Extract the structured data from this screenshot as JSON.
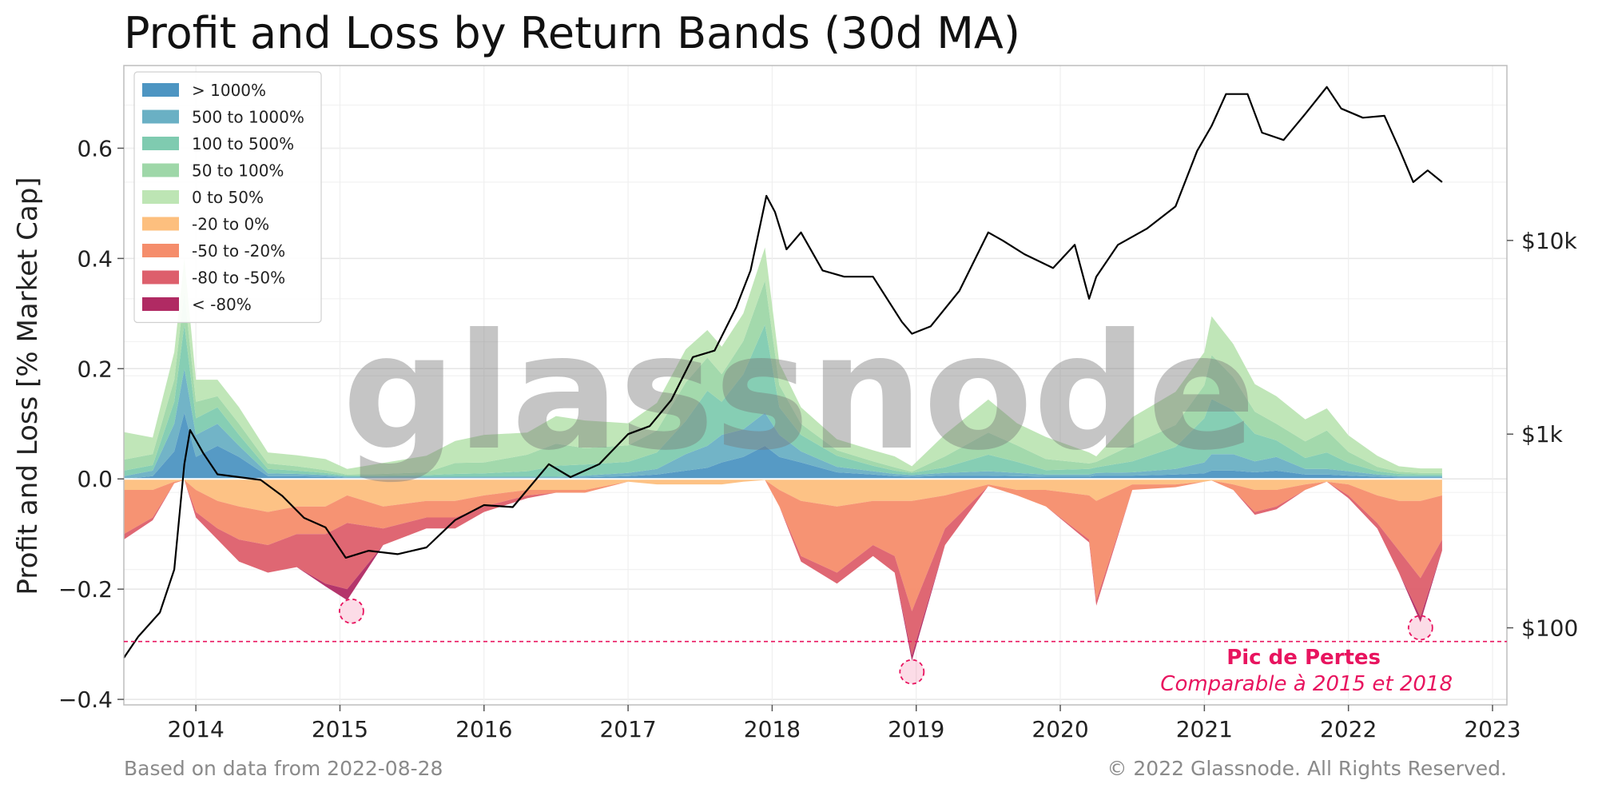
{
  "chart_data": {
    "type": "area",
    "title": "Profit and Loss by Return Bands (30d MA)",
    "ylabel": "Profit and Loss [% Market Cap]",
    "xlabel": "",
    "xlim": [
      2013.5,
      2023.1
    ],
    "ylim": [
      -0.41,
      0.75
    ],
    "yticks": [
      -0.4,
      -0.2,
      0.0,
      0.2,
      0.4,
      0.6
    ],
    "ytick_labels": [
      "−0.4",
      "−0.2",
      "0.0",
      "0.2",
      "0.4",
      "0.6"
    ],
    "xticks": [
      2014,
      2015,
      2016,
      2017,
      2018,
      2019,
      2020,
      2021,
      2022,
      2023
    ],
    "xtick_labels": [
      "2014",
      "2015",
      "2016",
      "2017",
      "2018",
      "2019",
      "2020",
      "2021",
      "2022",
      "2023"
    ],
    "y2_scale": "log",
    "y2lim": [
      40,
      80000
    ],
    "y2ticks": [
      100,
      1000,
      10000
    ],
    "y2tick_labels": [
      "$100",
      "$1k",
      "$10k"
    ],
    "grid": true,
    "legend_position": "top-left",
    "x": [
      2013.5,
      2013.7,
      2013.85,
      2013.92,
      2014.0,
      2014.15,
      2014.3,
      2014.5,
      2014.7,
      2014.9,
      2015.05,
      2015.3,
      2015.6,
      2015.8,
      2016.0,
      2016.3,
      2016.5,
      2016.7,
      2017.0,
      2017.2,
      2017.4,
      2017.55,
      2017.65,
      2017.8,
      2017.95,
      2018.05,
      2018.2,
      2018.45,
      2018.7,
      2018.85,
      2018.97,
      2019.2,
      2019.5,
      2019.7,
      2019.9,
      2020.2,
      2020.25,
      2020.5,
      2020.8,
      2021.0,
      2021.05,
      2021.2,
      2021.35,
      2021.5,
      2021.7,
      2021.85,
      2022.0,
      2022.2,
      2022.35,
      2022.5,
      2022.65
    ],
    "series": [
      {
        "name": "> 1000%",
        "color": "#4d95c2",
        "values": [
          0.0,
          0.005,
          0.05,
          0.12,
          0.04,
          0.06,
          0.04,
          0.005,
          0.005,
          0.004,
          0.002,
          0.002,
          0.002,
          0.002,
          0.002,
          0.002,
          0.002,
          0.003,
          0.005,
          0.008,
          0.015,
          0.02,
          0.03,
          0.04,
          0.06,
          0.04,
          0.03,
          0.012,
          0.008,
          0.005,
          0.004,
          0.006,
          0.006,
          0.005,
          0.004,
          0.004,
          0.006,
          0.006,
          0.008,
          0.01,
          0.015,
          0.015,
          0.012,
          0.015,
          0.008,
          0.008,
          0.006,
          0.004,
          0.003,
          0.003,
          0.003
        ]
      },
      {
        "name": "500 to 1000%",
        "color": "#6ab0c4",
        "values": [
          0.005,
          0.01,
          0.05,
          0.08,
          0.04,
          0.04,
          0.02,
          0.005,
          0.004,
          0.003,
          0.002,
          0.002,
          0.002,
          0.002,
          0.002,
          0.002,
          0.002,
          0.003,
          0.006,
          0.01,
          0.03,
          0.04,
          0.05,
          0.05,
          0.06,
          0.04,
          0.02,
          0.01,
          0.006,
          0.004,
          0.003,
          0.005,
          0.008,
          0.006,
          0.004,
          0.004,
          0.005,
          0.006,
          0.01,
          0.02,
          0.03,
          0.03,
          0.02,
          0.025,
          0.01,
          0.01,
          0.008,
          0.004,
          0.002,
          0.002,
          0.002
        ]
      },
      {
        "name": "100 to 500%",
        "color": "#7fcbb0",
        "values": [
          0.01,
          0.01,
          0.04,
          0.08,
          0.03,
          0.03,
          0.02,
          0.008,
          0.006,
          0.004,
          0.002,
          0.002,
          0.003,
          0.005,
          0.006,
          0.01,
          0.02,
          0.02,
          0.02,
          0.03,
          0.06,
          0.1,
          0.06,
          0.1,
          0.16,
          0.05,
          0.03,
          0.02,
          0.01,
          0.006,
          0.004,
          0.01,
          0.03,
          0.02,
          0.008,
          0.01,
          0.01,
          0.02,
          0.04,
          0.08,
          0.1,
          0.08,
          0.05,
          0.03,
          0.02,
          0.03,
          0.015,
          0.006,
          0.004,
          0.003,
          0.003
        ]
      },
      {
        "name": "50 to 100%",
        "color": "#9ed7a8",
        "values": [
          0.02,
          0.02,
          0.04,
          0.06,
          0.03,
          0.02,
          0.02,
          0.01,
          0.008,
          0.005,
          0.002,
          0.003,
          0.005,
          0.02,
          0.02,
          0.03,
          0.04,
          0.03,
          0.03,
          0.04,
          0.07,
          0.06,
          0.05,
          0.06,
          0.08,
          0.04,
          0.02,
          0.01,
          0.008,
          0.006,
          0.002,
          0.02,
          0.04,
          0.03,
          0.02,
          0.01,
          0.01,
          0.03,
          0.04,
          0.06,
          0.08,
          0.06,
          0.04,
          0.03,
          0.03,
          0.04,
          0.02,
          0.008,
          0.004,
          0.003,
          0.003
        ]
      },
      {
        "name": "0 to 50%",
        "color": "#bde5b4",
        "values": [
          0.05,
          0.03,
          0.05,
          0.06,
          0.04,
          0.03,
          0.03,
          0.02,
          0.02,
          0.02,
          0.01,
          0.02,
          0.03,
          0.04,
          0.05,
          0.04,
          0.05,
          0.05,
          0.04,
          0.05,
          0.06,
          0.05,
          0.05,
          0.05,
          0.06,
          0.04,
          0.03,
          0.02,
          0.02,
          0.02,
          0.01,
          0.04,
          0.06,
          0.04,
          0.04,
          0.02,
          0.01,
          0.05,
          0.06,
          0.06,
          0.07,
          0.06,
          0.05,
          0.05,
          0.04,
          0.04,
          0.03,
          0.02,
          0.01,
          0.008,
          0.008
        ]
      },
      {
        "name": "-20 to 0%",
        "color": "#fdbf7e",
        "values": [
          -0.02,
          -0.02,
          -0.005,
          -0.002,
          -0.02,
          -0.04,
          -0.05,
          -0.06,
          -0.05,
          -0.05,
          -0.03,
          -0.05,
          -0.04,
          -0.04,
          -0.03,
          -0.02,
          -0.02,
          -0.02,
          -0.005,
          -0.01,
          -0.01,
          -0.01,
          -0.01,
          -0.005,
          -0.002,
          -0.02,
          -0.04,
          -0.05,
          -0.04,
          -0.04,
          -0.04,
          -0.03,
          -0.01,
          -0.02,
          -0.02,
          -0.03,
          -0.04,
          -0.01,
          -0.01,
          -0.005,
          -0.003,
          -0.01,
          -0.02,
          -0.02,
          -0.01,
          -0.005,
          -0.01,
          -0.03,
          -0.04,
          -0.04,
          -0.03
        ]
      },
      {
        "name": "-50 to -20%",
        "color": "#f58d6b",
        "values": [
          -0.08,
          -0.05,
          -0.003,
          0.0,
          -0.04,
          -0.05,
          -0.06,
          -0.06,
          -0.05,
          -0.05,
          -0.05,
          -0.04,
          -0.03,
          -0.03,
          -0.02,
          -0.01,
          -0.005,
          -0.005,
          0.0,
          0.0,
          0.0,
          0.0,
          0.0,
          0.0,
          0.0,
          -0.03,
          -0.1,
          -0.12,
          -0.08,
          -0.1,
          -0.2,
          -0.06,
          -0.003,
          -0.01,
          -0.03,
          -0.08,
          -0.18,
          -0.01,
          -0.005,
          0.0,
          0.0,
          -0.01,
          -0.04,
          -0.03,
          -0.01,
          0.0,
          -0.02,
          -0.05,
          -0.09,
          -0.14,
          -0.08
        ]
      },
      {
        "name": "-80 to -50%",
        "color": "#dd5f6c",
        "values": [
          -0.01,
          -0.005,
          0.0,
          0.0,
          -0.01,
          -0.02,
          -0.04,
          -0.05,
          -0.06,
          -0.09,
          -0.12,
          -0.03,
          -0.02,
          -0.02,
          -0.01,
          -0.005,
          0.0,
          0.0,
          0.0,
          0.0,
          0.0,
          0.0,
          0.0,
          0.0,
          0.0,
          0.0,
          -0.01,
          -0.02,
          -0.02,
          -0.03,
          -0.08,
          -0.03,
          0.0,
          0.0,
          0.0,
          -0.005,
          -0.01,
          0.0,
          0.0,
          0.0,
          0.0,
          0.0,
          -0.005,
          -0.005,
          0.0,
          0.0,
          -0.005,
          -0.01,
          -0.04,
          -0.07,
          -0.02
        ]
      },
      {
        "name": "< -80%",
        "color": "#b02a63",
        "values": [
          0.0,
          0.0,
          0.0,
          0.0,
          0.0,
          0.0,
          0.0,
          0.0,
          0.0,
          -0.005,
          -0.02,
          0.0,
          0.0,
          0.0,
          0.0,
          0.0,
          0.0,
          0.0,
          0.0,
          0.0,
          0.0,
          0.0,
          0.0,
          0.0,
          0.0,
          0.0,
          0.0,
          0.0,
          0.0,
          0.0,
          -0.01,
          0.0,
          0.0,
          0.0,
          0.0,
          0.0,
          0.0,
          0.0,
          0.0,
          0.0,
          0.0,
          0.0,
          0.0,
          0.0,
          0.0,
          0.0,
          0.0,
          0.0,
          0.0,
          -0.01,
          0.0
        ]
      }
    ],
    "price": {
      "color": "#000000",
      "axis": "right",
      "x": [
        2013.5,
        2013.6,
        2013.75,
        2013.85,
        2013.92,
        2013.96,
        2014.05,
        2014.15,
        2014.3,
        2014.45,
        2014.6,
        2014.75,
        2014.9,
        2015.04,
        2015.2,
        2015.4,
        2015.6,
        2015.8,
        2016.0,
        2016.2,
        2016.45,
        2016.6,
        2016.8,
        2017.0,
        2017.15,
        2017.3,
        2017.45,
        2017.6,
        2017.75,
        2017.85,
        2017.96,
        2018.02,
        2018.1,
        2018.2,
        2018.35,
        2018.5,
        2018.7,
        2018.9,
        2018.97,
        2019.1,
        2019.3,
        2019.5,
        2019.6,
        2019.75,
        2019.95,
        2020.1,
        2020.2,
        2020.25,
        2020.4,
        2020.6,
        2020.8,
        2020.95,
        2021.05,
        2021.15,
        2021.3,
        2021.4,
        2021.55,
        2021.7,
        2021.85,
        2021.95,
        2022.1,
        2022.25,
        2022.35,
        2022.45,
        2022.55,
        2022.65
      ],
      "values": [
        70,
        90,
        120,
        200,
        700,
        1050,
        800,
        620,
        600,
        580,
        480,
        370,
        330,
        230,
        250,
        240,
        260,
        360,
        430,
        420,
        700,
        600,
        700,
        1000,
        1100,
        1500,
        2500,
        2700,
        4500,
        7000,
        17000,
        14000,
        9000,
        11000,
        7000,
        6500,
        6500,
        3800,
        3300,
        3600,
        5500,
        11000,
        10000,
        8500,
        7200,
        9500,
        5000,
        6500,
        9500,
        11500,
        15000,
        29000,
        39000,
        57000,
        57000,
        36000,
        33000,
        45000,
        62000,
        48000,
        43000,
        44000,
        30000,
        20000,
        23000,
        20000
      ]
    }
  },
  "legend": {
    "items": [
      {
        "label": "> 1000%",
        "color": "#4d95c2"
      },
      {
        "label": "500 to 1000%",
        "color": "#6ab0c4"
      },
      {
        "label": "100 to 500%",
        "color": "#7fcbb0"
      },
      {
        "label": "50 to 100%",
        "color": "#9ed7a8"
      },
      {
        "label": "0 to 50%",
        "color": "#bde5b4"
      },
      {
        "label": "-20 to 0%",
        "color": "#fdbf7e"
      },
      {
        "label": "-50 to -20%",
        "color": "#f58d6b"
      },
      {
        "label": "-80 to -50%",
        "color": "#dd5f6c"
      },
      {
        "label": "< -80%",
        "color": "#b02a63"
      }
    ]
  },
  "annotation": {
    "line_value": -0.295,
    "color": "#e8145f",
    "title": "Pic de Pertes",
    "subtitle": "Comparable à 2015 et 2018",
    "markers": [
      {
        "x": 2015.08,
        "y": -0.24
      },
      {
        "x": 2018.97,
        "y": -0.35
      },
      {
        "x": 2022.5,
        "y": -0.27
      }
    ]
  },
  "watermark": "glassnode",
  "footer": {
    "left": "Based on data from 2022-08-28",
    "right": "© 2022 Glassnode. All Rights Reserved."
  }
}
